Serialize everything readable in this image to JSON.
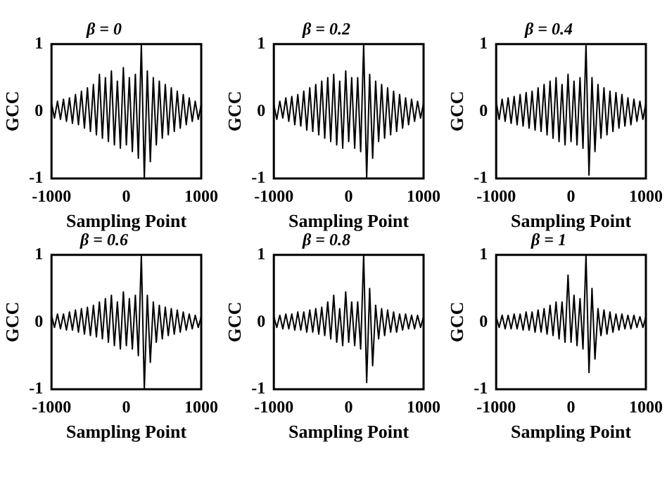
{
  "chart_data": [
    {
      "type": "line",
      "title": "β = 0",
      "xlabel": "Sampling Point",
      "ylabel": "GCC",
      "color": "#000000",
      "xlim": [
        -1000,
        1000
      ],
      "xticks": [
        -1000,
        0,
        1000
      ],
      "ylim": [
        -1,
        1
      ],
      "yticks": [
        -1,
        0,
        1
      ],
      "x": [
        -1000,
        -960,
        -920,
        -880,
        -840,
        -800,
        -760,
        -720,
        -680,
        -640,
        -600,
        -560,
        -520,
        -480,
        -440,
        -400,
        -360,
        -320,
        -280,
        -240,
        -200,
        -160,
        -120,
        -80,
        -40,
        0,
        40,
        80,
        120,
        160,
        200,
        240,
        280,
        320,
        360,
        400,
        440,
        480,
        520,
        560,
        600,
        640,
        680,
        720,
        760,
        800,
        840,
        880,
        920,
        960,
        1000
      ],
      "values": [
        0.12,
        -0.1,
        0.15,
        -0.12,
        0.18,
        -0.15,
        0.2,
        -0.18,
        0.25,
        -0.2,
        0.3,
        -0.25,
        0.35,
        -0.3,
        0.4,
        -0.35,
        0.55,
        -0.4,
        0.5,
        -0.45,
        0.6,
        -0.5,
        0.45,
        -0.55,
        0.65,
        -0.5,
        0.5,
        -0.6,
        0.55,
        -0.7,
        1,
        -1,
        0.6,
        -0.75,
        0.5,
        -0.5,
        0.45,
        -0.4,
        0.4,
        -0.35,
        0.35,
        -0.3,
        0.3,
        -0.25,
        0.25,
        -0.2,
        0.2,
        -0.15,
        0.15,
        -0.12,
        0.1
      ]
    },
    {
      "type": "line",
      "title": "β = 0.2",
      "xlabel": "Sampling Point",
      "ylabel": "GCC",
      "color": "#000000",
      "xlim": [
        -1000,
        1000
      ],
      "xticks": [
        -1000,
        0,
        1000
      ],
      "ylim": [
        -1,
        1
      ],
      "yticks": [
        -1,
        0,
        1
      ],
      "x": [
        -1000,
        -960,
        -920,
        -880,
        -840,
        -800,
        -760,
        -720,
        -680,
        -640,
        -600,
        -560,
        -520,
        -480,
        -440,
        -400,
        -360,
        -320,
        -280,
        -240,
        -200,
        -160,
        -120,
        -80,
        -40,
        0,
        40,
        80,
        120,
        160,
        200,
        240,
        280,
        320,
        360,
        400,
        440,
        480,
        520,
        560,
        600,
        640,
        680,
        720,
        760,
        800,
        840,
        880,
        920,
        960,
        1000
      ],
      "values": [
        0.1,
        -0.12,
        0.15,
        -0.1,
        0.2,
        -0.15,
        0.22,
        -0.2,
        0.25,
        -0.22,
        0.3,
        -0.28,
        0.35,
        -0.3,
        0.4,
        -0.35,
        0.45,
        -0.4,
        0.5,
        -0.45,
        0.55,
        -0.5,
        0.45,
        -0.55,
        0.6,
        -0.45,
        0.5,
        -0.55,
        0.5,
        -0.6,
        1,
        -1,
        0.55,
        -0.7,
        0.45,
        -0.45,
        0.4,
        -0.4,
        0.35,
        -0.35,
        0.3,
        -0.3,
        0.25,
        -0.25,
        0.2,
        -0.2,
        0.18,
        -0.15,
        0.15,
        -0.1,
        0.12
      ]
    },
    {
      "type": "line",
      "title": "β = 0.4",
      "xlabel": "Sampling Point",
      "ylabel": "GCC",
      "color": "#000000",
      "xlim": [
        -1000,
        1000
      ],
      "xticks": [
        -1000,
        0,
        1000
      ],
      "ylim": [
        -1,
        1
      ],
      "yticks": [
        -1,
        0,
        1
      ],
      "x": [
        -1000,
        -960,
        -920,
        -880,
        -840,
        -800,
        -760,
        -720,
        -680,
        -640,
        -600,
        -560,
        -520,
        -480,
        -440,
        -400,
        -360,
        -320,
        -280,
        -240,
        -200,
        -160,
        -120,
        -80,
        -40,
        0,
        40,
        80,
        120,
        160,
        200,
        240,
        280,
        320,
        360,
        400,
        440,
        480,
        520,
        560,
        600,
        640,
        680,
        720,
        760,
        800,
        840,
        880,
        920,
        960,
        1000
      ],
      "values": [
        0.15,
        -0.12,
        0.18,
        -0.15,
        0.2,
        -0.18,
        0.22,
        -0.2,
        0.25,
        -0.22,
        0.28,
        -0.25,
        0.3,
        -0.28,
        0.35,
        -0.3,
        0.4,
        -0.35,
        0.45,
        -0.4,
        0.5,
        -0.45,
        0.4,
        -0.5,
        0.55,
        -0.45,
        0.45,
        -0.5,
        0.5,
        -0.55,
        1,
        -0.95,
        0.5,
        -0.6,
        0.4,
        -0.4,
        0.35,
        -0.35,
        0.3,
        -0.3,
        0.28,
        -0.25,
        0.25,
        -0.22,
        0.2,
        -0.2,
        0.18,
        -0.15,
        0.15,
        -0.12,
        0.12
      ]
    },
    {
      "type": "line",
      "title": "β = 0.6",
      "xlabel": "Sampling Point",
      "ylabel": "GCC",
      "color": "#000000",
      "xlim": [
        -1000,
        1000
      ],
      "xticks": [
        -1000,
        0,
        1000
      ],
      "ylim": [
        -1,
        1
      ],
      "yticks": [
        -1,
        0,
        1
      ],
      "x": [
        -1000,
        -960,
        -920,
        -880,
        -840,
        -800,
        -760,
        -720,
        -680,
        -640,
        -600,
        -560,
        -520,
        -480,
        -440,
        -400,
        -360,
        -320,
        -280,
        -240,
        -200,
        -160,
        -120,
        -80,
        -40,
        0,
        40,
        80,
        120,
        160,
        200,
        240,
        280,
        320,
        360,
        400,
        440,
        480,
        520,
        560,
        600,
        640,
        680,
        720,
        760,
        800,
        840,
        880,
        920,
        960,
        1000
      ],
      "values": [
        0.1,
        -0.08,
        0.12,
        -0.1,
        0.12,
        -0.12,
        0.15,
        -0.12,
        0.18,
        -0.15,
        0.2,
        -0.18,
        0.22,
        -0.2,
        0.25,
        -0.22,
        0.3,
        -0.25,
        0.35,
        -0.3,
        0.4,
        -0.35,
        0.3,
        -0.4,
        0.45,
        -0.35,
        0.35,
        -0.4,
        0.4,
        -0.5,
        1,
        -1,
        0.4,
        -0.6,
        0.3,
        -0.3,
        0.25,
        -0.25,
        0.22,
        -0.2,
        0.2,
        -0.18,
        0.18,
        -0.15,
        0.15,
        -0.12,
        0.12,
        -0.1,
        0.1,
        -0.08,
        0.08
      ]
    },
    {
      "type": "line",
      "title": "β = 0.8",
      "xlabel": "Sampling Point",
      "ylabel": "GCC",
      "color": "#000000",
      "xlim": [
        -1000,
        1000
      ],
      "xticks": [
        -1000,
        0,
        1000
      ],
      "ylim": [
        -1,
        1
      ],
      "yticks": [
        -1,
        0,
        1
      ],
      "x": [
        -1000,
        -960,
        -920,
        -880,
        -840,
        -800,
        -760,
        -720,
        -680,
        -640,
        -600,
        -560,
        -520,
        -480,
        -440,
        -400,
        -360,
        -320,
        -280,
        -240,
        -200,
        -160,
        -120,
        -80,
        -40,
        0,
        40,
        80,
        120,
        160,
        200,
        240,
        280,
        320,
        360,
        400,
        440,
        480,
        520,
        560,
        600,
        640,
        680,
        720,
        760,
        800,
        840,
        880,
        920,
        960,
        1000
      ],
      "values": [
        0.08,
        -0.08,
        0.1,
        -0.1,
        0.12,
        -0.1,
        0.12,
        -0.12,
        0.15,
        -0.12,
        0.15,
        -0.15,
        0.18,
        -0.15,
        0.2,
        -0.18,
        0.22,
        -0.2,
        0.3,
        -0.25,
        0.4,
        -0.3,
        0.2,
        -0.35,
        0.45,
        -0.3,
        0.3,
        -0.35,
        0.3,
        -0.4,
        1,
        -0.9,
        0.5,
        -0.65,
        0.25,
        -0.25,
        0.2,
        -0.2,
        0.18,
        -0.15,
        0.15,
        -0.15,
        0.12,
        -0.12,
        0.12,
        -0.1,
        0.1,
        -0.1,
        0.1,
        -0.08,
        0.08
      ]
    },
    {
      "type": "line",
      "title": "β = 1",
      "xlabel": "Sampling Point",
      "ylabel": "GCC",
      "color": "#000000",
      "xlim": [
        -1000,
        1000
      ],
      "xticks": [
        -1000,
        0,
        1000
      ],
      "ylim": [
        -1,
        1
      ],
      "yticks": [
        -1,
        0,
        1
      ],
      "x": [
        -1000,
        -960,
        -920,
        -880,
        -840,
        -800,
        -760,
        -720,
        -680,
        -640,
        -600,
        -560,
        -520,
        -480,
        -440,
        -400,
        -360,
        -320,
        -280,
        -240,
        -200,
        -160,
        -120,
        -80,
        -40,
        0,
        40,
        80,
        120,
        160,
        200,
        240,
        280,
        320,
        360,
        400,
        440,
        480,
        520,
        560,
        600,
        640,
        680,
        720,
        760,
        800,
        840,
        880,
        920,
        960,
        1000
      ],
      "values": [
        0.08,
        -0.08,
        0.1,
        -0.1,
        0.1,
        -0.1,
        0.12,
        -0.1,
        0.12,
        -0.12,
        0.15,
        -0.12,
        0.15,
        -0.15,
        0.18,
        -0.15,
        0.2,
        -0.18,
        0.25,
        -0.2,
        0.3,
        -0.25,
        0.3,
        -0.3,
        0.7,
        -0.3,
        0.4,
        -0.35,
        0.35,
        -0.4,
        1,
        -0.75,
        0.5,
        -0.55,
        0.2,
        -0.2,
        0.18,
        -0.18,
        0.15,
        -0.15,
        0.12,
        -0.12,
        0.12,
        -0.1,
        0.1,
        -0.1,
        0.1,
        -0.08,
        0.08,
        -0.08,
        0.08
      ]
    }
  ]
}
